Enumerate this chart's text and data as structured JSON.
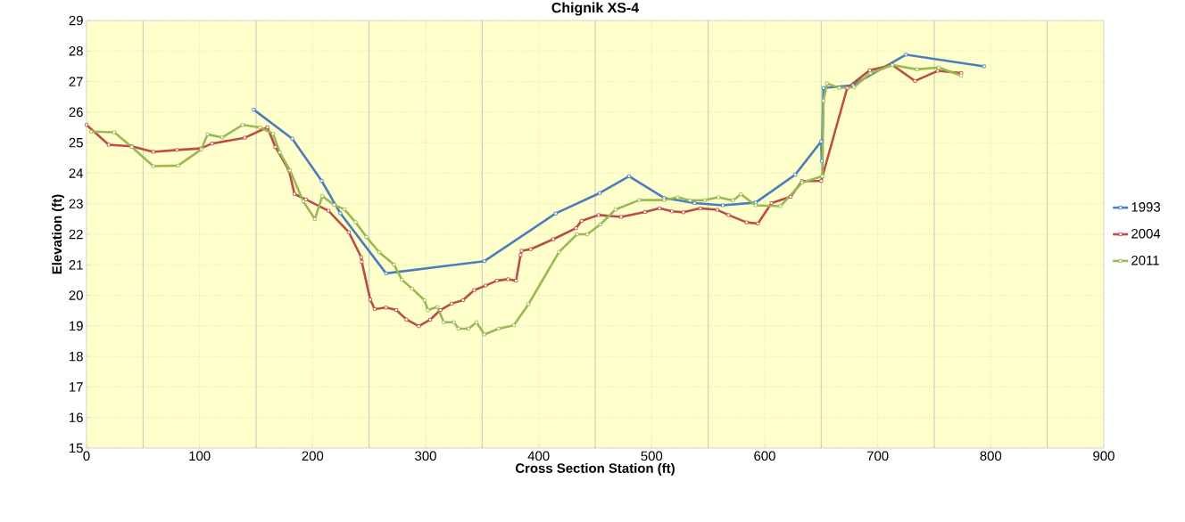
{
  "chart_data": {
    "type": "line",
    "title": "Chignik XS-4",
    "xlabel": "Cross Section Station (ft)",
    "ylabel": "Elevation (ft)",
    "xlim": [
      0,
      900
    ],
    "xticks": [
      0,
      100,
      200,
      300,
      400,
      500,
      600,
      700,
      800,
      900
    ],
    "ylim": [
      15,
      29
    ],
    "yticks": [
      15,
      16,
      17,
      18,
      19,
      20,
      21,
      22,
      23,
      24,
      25,
      26,
      27,
      28,
      29
    ],
    "grid": true,
    "legend": "right",
    "marker": "square",
    "line_style": "solid",
    "series": [
      {
        "name": "1993",
        "color": "#4a7ebb",
        "x": [
          148,
          182,
          208,
          224.5,
          265,
          352,
          415,
          454,
          480,
          511,
          538,
          563,
          592,
          627,
          650,
          650.5,
          652,
          678,
          725,
          794
        ],
        "values": [
          26.08,
          25.13,
          23.75,
          22.69,
          20.72,
          21.12,
          22.68,
          23.35,
          23.9,
          23.19,
          23.02,
          22.95,
          23.04,
          23.95,
          25.04,
          24.4,
          26.79,
          26.88,
          27.88,
          27.5
        ]
      },
      {
        "name": "2004",
        "color": "#be4b48",
        "x": [
          0,
          19.6,
          40,
          59,
          80,
          101,
          111,
          140,
          160,
          167,
          179,
          184,
          194,
          214,
          232,
          243,
          243.5,
          251,
          255,
          265,
          274,
          283,
          294,
          304,
          313,
          323,
          333,
          343,
          353,
          363,
          373,
          380,
          384,
          385,
          393,
          413,
          433,
          438,
          453,
          473,
          494,
          507,
          518,
          528,
          543,
          558,
          568,
          584,
          594,
          606,
          623,
          633,
          650,
          673,
          693,
          713,
          733,
          753,
          774
        ],
        "values": [
          25.58,
          24.93,
          24.88,
          24.7,
          24.76,
          24.81,
          24.97,
          25.16,
          25.5,
          24.86,
          24.1,
          23.32,
          23.14,
          22.77,
          22.07,
          21.25,
          21.1,
          19.86,
          19.55,
          19.6,
          19.52,
          19.21,
          18.99,
          19.2,
          19.52,
          19.73,
          19.84,
          20.17,
          20.32,
          20.48,
          20.53,
          20.48,
          21.32,
          21.46,
          21.51,
          21.84,
          22.2,
          22.44,
          22.63,
          22.57,
          22.73,
          22.85,
          22.75,
          22.72,
          22.85,
          22.8,
          22.63,
          22.39,
          22.35,
          23.02,
          23.23,
          23.74,
          23.75,
          26.79,
          27.37,
          27.54,
          27.02,
          27.35,
          27.28
        ]
      },
      {
        "name": "2011",
        "color": "#98b954",
        "x": [
          4,
          24.5,
          40,
          59,
          81,
          101.6,
          107,
          120,
          138,
          153.5,
          165,
          171,
          180,
          191.7,
          202,
          208.6,
          219,
          228,
          238,
          247.6,
          259,
          272,
          279,
          288,
          299,
          302,
          310.5,
          316,
          325,
          329,
          338,
          345,
          352,
          364.5,
          378,
          391,
          418,
          434,
          443,
          454.6,
          468,
          489,
          511,
          523,
          534,
          547,
          559,
          572,
          579,
          592,
          614,
          633,
          651,
          652,
          655,
          666,
          679,
          693.5,
          713,
          734.7,
          754,
          773.7
        ],
        "values": [
          25.36,
          25.34,
          24.86,
          24.23,
          24.25,
          24.78,
          25.27,
          25.17,
          25.58,
          25.5,
          25.29,
          24.68,
          24.09,
          23.08,
          22.5,
          23.25,
          22.96,
          22.82,
          22.4,
          21.91,
          21.41,
          21.01,
          20.51,
          20.22,
          19.84,
          19.52,
          19.62,
          19.12,
          19.12,
          18.91,
          18.91,
          19.12,
          18.72,
          18.91,
          19.02,
          19.71,
          21.42,
          22.0,
          22.0,
          22.32,
          22.81,
          23.12,
          23.12,
          23.21,
          23.11,
          23.12,
          23.21,
          23.11,
          23.31,
          22.95,
          22.92,
          23.69,
          23.9,
          26.37,
          26.94,
          26.79,
          26.82,
          27.27,
          27.54,
          27.4,
          27.46,
          27.2
        ]
      }
    ]
  }
}
